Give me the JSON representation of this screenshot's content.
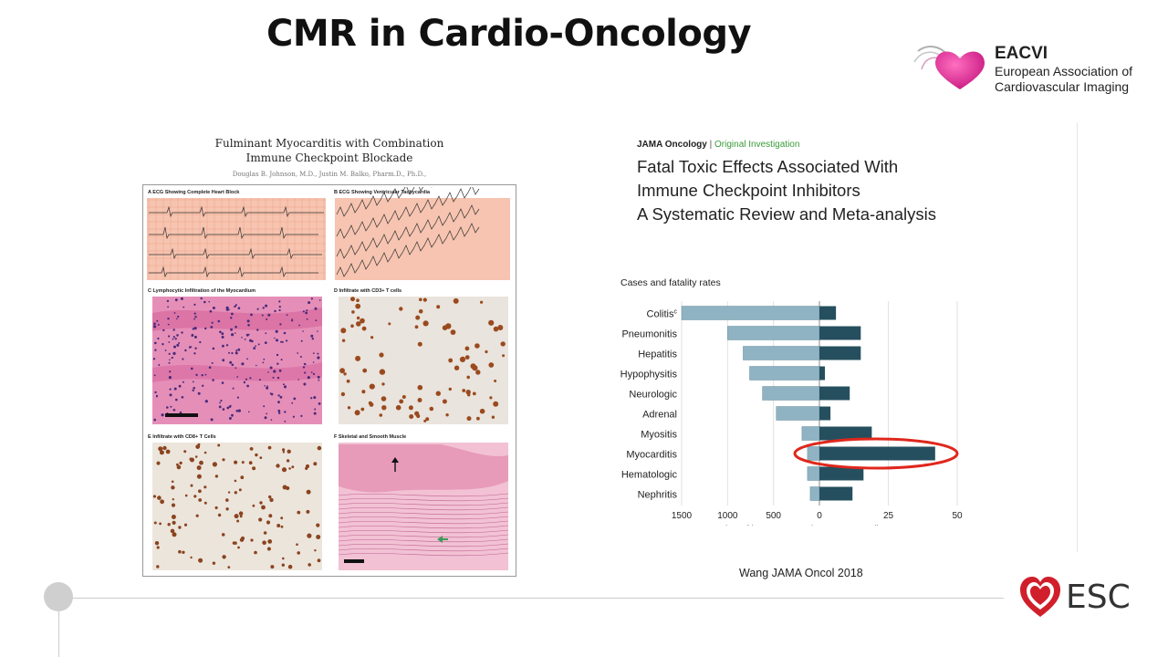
{
  "slide_title": "CMR in Cardio-Oncology",
  "eacvi": {
    "name": "EACVI",
    "line1": "European Association of",
    "line2": "Cardiovascular Imaging"
  },
  "left_figure": {
    "title_line1": "Fulminant Myocarditis with Combination",
    "title_line2": "Immune Checkpoint Blockade",
    "authors": "Douglas B. Johnson, M.D., Justin M. Balko, Pharm.D., Ph.D.,",
    "panels": [
      {
        "label": "A  ECG Showing Complete Heart Block"
      },
      {
        "label": "B  ECG Showing Ventricular Tachycardia"
      },
      {
        "label": "C  Lymphocytic Infiltration of the Myocardium"
      },
      {
        "label": "D  Infiltrate with CD3+ T cells"
      },
      {
        "label": "E  Infiltrate with CD8+ T Cells"
      },
      {
        "label": "F  Skeletal and Smooth Muscle"
      }
    ]
  },
  "right_figure": {
    "journal": "JAMA Oncology",
    "separator": "|",
    "article_type": "Original Investigation",
    "title_line1": "Fatal Toxic Effects Associated With",
    "title_line2": "Immune Checkpoint Inhibitors",
    "subtitle": "A Systematic Review and Meta-analysis"
  },
  "chart_data": {
    "type": "bar",
    "title": "Cases and fatality rates",
    "categories": [
      "Colitis",
      "Pneumonitis",
      "Hepatitis",
      "Hypophysitis",
      "Neurologic",
      "Adrenal",
      "Myositis",
      "Myocarditis",
      "Hematologic",
      "Nephritis"
    ],
    "category_superscripts": {
      "Colitis": "c"
    },
    "series": [
      {
        "name": "Number of irAEs Reported",
        "values": [
          1500,
          1000,
          830,
          760,
          620,
          470,
          190,
          130,
          130,
          100
        ]
      },
      {
        "name": "Fatality Rate, %",
        "values": [
          6,
          15,
          15,
          2,
          11,
          4,
          19,
          42,
          16,
          12
        ]
      }
    ],
    "left_axis": {
      "label": "Number of irAEs Reported",
      "ticks": [
        1500,
        1000,
        500,
        0
      ],
      "range": [
        1500,
        0
      ]
    },
    "right_axis": {
      "label": "Fatality Rate, %",
      "ticks": [
        0,
        25,
        50
      ],
      "range": [
        0,
        50
      ]
    },
    "highlighted_category": "Myocarditis",
    "colors": {
      "left": "#8fb3c2",
      "right": "#254f5e",
      "highlight": "#e0271c"
    }
  },
  "citation": "Wang JAMA Oncol 2018",
  "esc_logo": "ESC"
}
